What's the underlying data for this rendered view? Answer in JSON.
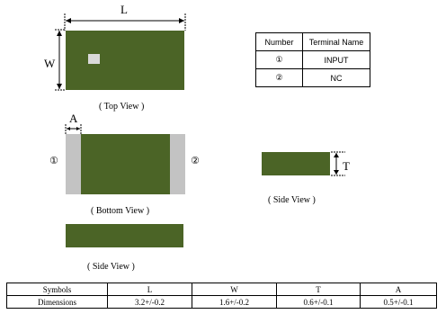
{
  "top_view": {
    "caption": "( Top View )",
    "length_letter": "L",
    "width_letter": "W"
  },
  "bottom_view": {
    "caption": "( Bottom View )",
    "a_letter": "A",
    "pad1": "①",
    "pad2": "②"
  },
  "side_view_right": {
    "caption": "( Side View )",
    "t_letter": "T"
  },
  "side_view_bottom": {
    "caption": "( Side View )"
  },
  "terminal_table": {
    "headers": [
      "Number",
      "Terminal Name"
    ],
    "rows": [
      {
        "number": "①",
        "name": "INPUT"
      },
      {
        "number": "②",
        "name": "NC"
      }
    ]
  },
  "dimension_table": {
    "headers": [
      "Symbols",
      "L",
      "W",
      "T",
      "A"
    ],
    "row_label": "Dimensions",
    "values": [
      "3.2+/-0.2",
      "1.6+/-0.2",
      "0.6+/-0.1",
      "0.5+/-0.1"
    ]
  },
  "colors": {
    "body": "#4b6426",
    "terminal": "#c3c3c3",
    "marker": "#d9d9d9"
  }
}
